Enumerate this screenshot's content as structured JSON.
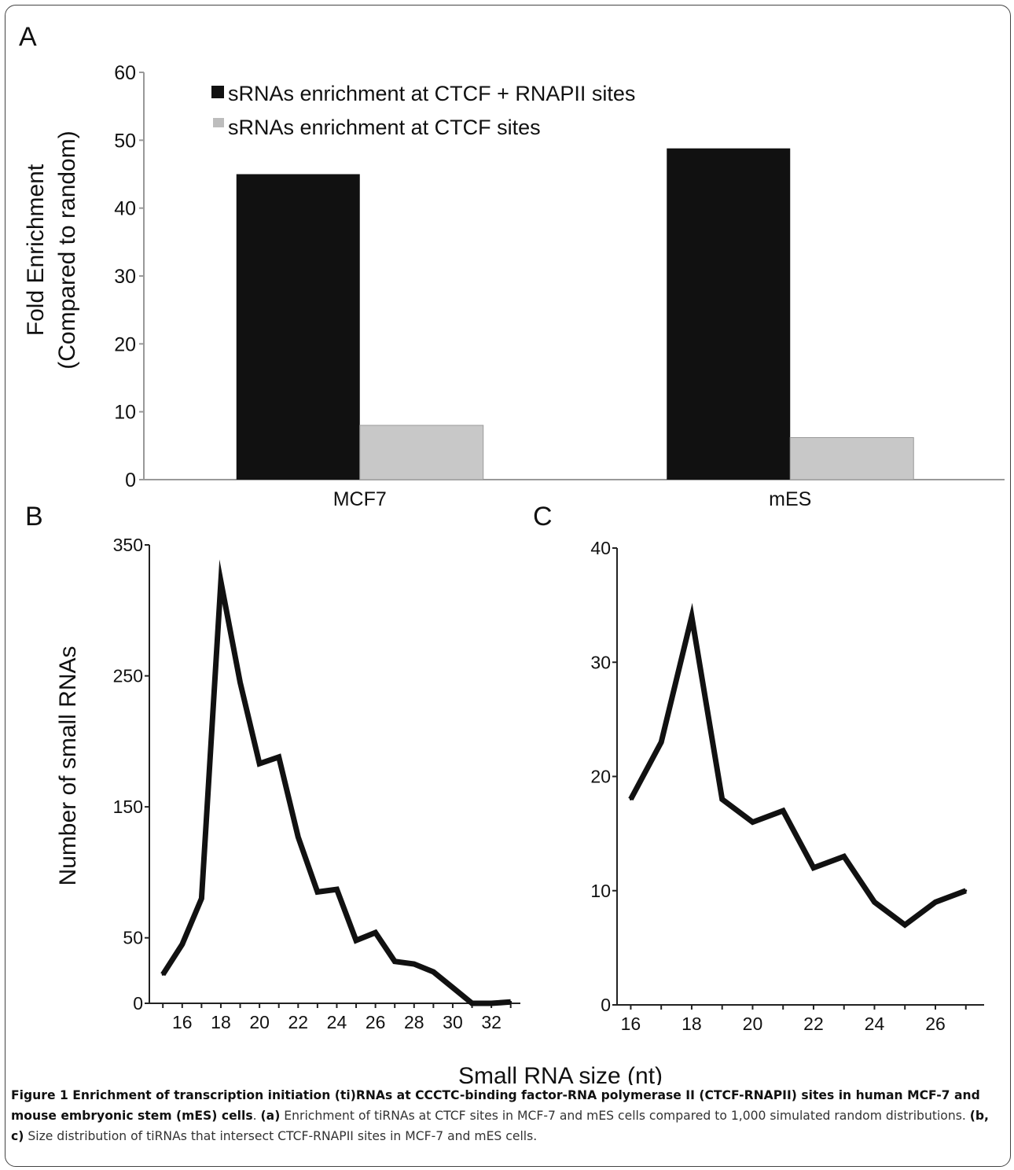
{
  "panels": {
    "a": "A",
    "b": "B",
    "c": "C"
  },
  "caption": {
    "title": "Figure 1 Enrichment of transcription initiation (ti)RNAs at CCCTC-binding factor-RNA polymerase II (CTCF-RNAPII) sites in human MCF-7 and mouse embryonic stem (mES) cells",
    "part_a_tag": "(a)",
    "part_a_text": "Enrichment of tiRNAs at CTCF sites in MCF-7 and mES cells compared to 1,000 simulated random distributions.",
    "part_bc_tag": "(b, c)",
    "part_bc_text": "Size distribution of tiRNAs that intersect CTCF-RNAPII sites in MCF-7 and mES cells."
  },
  "shared_xlabel": "Small RNA size (nt)",
  "chart_data": [
    {
      "panel": "A",
      "type": "bar",
      "categories": [
        "MCF7",
        "mES"
      ],
      "series": [
        {
          "name": "sRNAs enrichment at CTCF + RNAPII sites",
          "color": "#111111",
          "values": [
            45,
            48.8
          ]
        },
        {
          "name": "sRNAs enrichment at CTCF sites",
          "color": "#c8c8c8",
          "values": [
            8,
            6.2
          ]
        }
      ],
      "ylabel": [
        "Fold Enrichment",
        "(Compared to random)"
      ],
      "ylim": [
        0,
        60
      ],
      "yticks": [
        0,
        10,
        20,
        30,
        40,
        50,
        60
      ],
      "legend": "top-left",
      "grid": false
    },
    {
      "panel": "B",
      "type": "line",
      "x": [
        15,
        16,
        17,
        18,
        19,
        20,
        21,
        22,
        23,
        24,
        25,
        26,
        27,
        28,
        29,
        30,
        31,
        32,
        33
      ],
      "y": [
        22,
        45,
        80,
        322,
        245,
        183,
        188,
        127,
        85,
        87,
        48,
        54,
        32,
        30,
        24,
        12,
        0,
        0,
        1
      ],
      "ylabel": "Number of small RNAs",
      "ylim": [
        0,
        350
      ],
      "yticks": [
        0,
        50,
        150,
        250,
        350
      ],
      "xticks": [
        16,
        18,
        20,
        22,
        24,
        26,
        28,
        30,
        32
      ],
      "color": "#111111"
    },
    {
      "panel": "C",
      "type": "line",
      "x": [
        16,
        17,
        18,
        19,
        20,
        21,
        22,
        23,
        24,
        25,
        26,
        27
      ],
      "y": [
        18,
        23,
        34,
        18,
        16,
        17,
        12,
        13,
        9,
        7,
        9,
        10
      ],
      "ylim": [
        0,
        40
      ],
      "yticks": [
        0,
        10,
        20,
        30,
        40
      ],
      "xticks": [
        16,
        18,
        20,
        22,
        24,
        26
      ],
      "color": "#111111"
    }
  ]
}
